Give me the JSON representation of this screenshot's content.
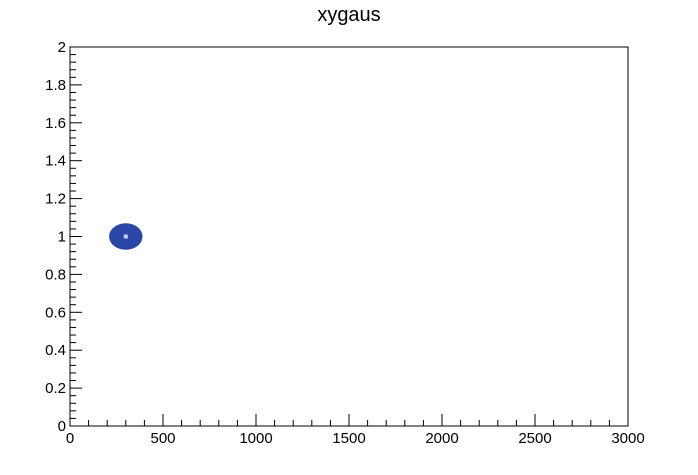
{
  "chart_data": {
    "type": "heatmap",
    "title": "xygaus",
    "xlabel": "",
    "ylabel": "",
    "xlim": [
      0,
      3000
    ],
    "ylim": [
      0,
      2
    ],
    "x_ticks": [
      "0",
      "500",
      "1000",
      "1500",
      "2000",
      "2500",
      "3000"
    ],
    "y_ticks": [
      "0",
      "0.2",
      "0.4",
      "0.6",
      "0.8",
      "1",
      "1.2",
      "1.4",
      "1.6",
      "1.8",
      "2"
    ],
    "grid": false,
    "blob": {
      "center": [
        300,
        1.0
      ],
      "x_extent": [
        220,
        400
      ],
      "y_extent": [
        0.93,
        1.07
      ]
    },
    "colors": {
      "fill": "#2a47a8",
      "peak": "#c8d0f0",
      "axis": "#000000",
      "background": "#ffffff"
    }
  }
}
